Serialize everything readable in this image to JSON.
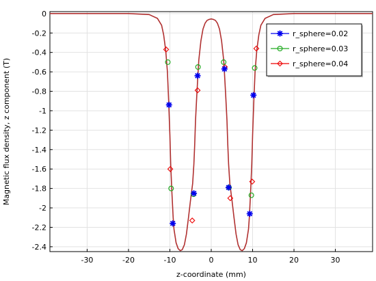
{
  "chart_data": {
    "type": "line",
    "title": "",
    "xlabel": "z-coordinate (mm)",
    "ylabel": "Magnetic flux density, z component (T)",
    "xlim": [
      -39,
      39
    ],
    "ylim": [
      -2.45,
      0.02
    ],
    "x_ticks": [
      -30,
      -20,
      -10,
      0,
      10,
      20,
      30
    ],
    "x_tick_labels": [
      "-30",
      "-20",
      "-10",
      "0",
      "10",
      "20",
      "30"
    ],
    "y_ticks": [
      0,
      -0.2,
      -0.4,
      -0.6,
      -0.8,
      -1,
      -1.2,
      -1.4,
      -1.6,
      -1.8,
      -2,
      -2.2,
      -2.4
    ],
    "y_tick_labels": [
      "0",
      "-0.2",
      "-0.4",
      "-0.6",
      "-0.8",
      "-1",
      "-1.2",
      "-1.4",
      "-1.6",
      "-1.8",
      "-2",
      "-2.2",
      "-2.4"
    ],
    "grid": true,
    "legend_position": "top-right",
    "curve": {
      "color": "#b03030",
      "x": [
        -39,
        -20,
        -15,
        -13,
        -12,
        -11.5,
        -11,
        -10.6,
        -10.3,
        -10,
        -9.8,
        -9.5,
        -9.2,
        -9,
        -8.5,
        -8,
        -7.5,
        -7,
        -6.5,
        -6,
        -5.5,
        -5,
        -4.5,
        -4.2,
        -4,
        -3.8,
        -3.5,
        -3.2,
        -3,
        -2.5,
        -2,
        -1.5,
        -1,
        -0.5,
        0,
        0.5,
        1,
        1.5,
        2,
        2.5,
        3,
        3.2,
        3.5,
        3.8,
        4,
        4.2,
        4.5,
        5,
        5.5,
        6,
        6.5,
        7,
        7.5,
        8,
        8.5,
        9,
        9.2,
        9.5,
        9.8,
        10,
        10.3,
        10.6,
        11,
        11.5,
        12,
        13,
        15,
        20,
        39
      ],
      "y": [
        0,
        0,
        -0.01,
        -0.05,
        -0.12,
        -0.22,
        -0.38,
        -0.6,
        -0.9,
        -1.25,
        -1.55,
        -1.85,
        -2.1,
        -2.22,
        -2.36,
        -2.42,
        -2.44,
        -2.43,
        -2.38,
        -2.27,
        -2.1,
        -1.92,
        -1.75,
        -1.55,
        -1.35,
        -1.1,
        -0.85,
        -0.62,
        -0.48,
        -0.28,
        -0.16,
        -0.1,
        -0.07,
        -0.06,
        -0.055,
        -0.06,
        -0.07,
        -0.1,
        -0.16,
        -0.28,
        -0.48,
        -0.62,
        -0.85,
        -1.1,
        -1.35,
        -1.55,
        -1.75,
        -1.92,
        -2.1,
        -2.27,
        -2.38,
        -2.43,
        -2.44,
        -2.42,
        -2.36,
        -2.22,
        -2.1,
        -1.85,
        -1.55,
        -1.25,
        -0.9,
        -0.6,
        -0.38,
        -0.22,
        -0.12,
        -0.05,
        -0.01,
        0,
        0
      ]
    },
    "series": [
      {
        "name": "r_sphere=0.02",
        "color": "#0000ee",
        "marker": "asterisk",
        "x": [
          -10.2,
          -9.3,
          -4.2,
          -3.3,
          3.2,
          4.2,
          9.3,
          10.2
        ],
        "y": [
          -0.94,
          -2.16,
          -1.85,
          -0.64,
          -0.57,
          -1.79,
          -2.06,
          -0.84
        ]
      },
      {
        "name": "r_sphere=0.03",
        "color": "#22aa22",
        "marker": "circle",
        "x": [
          -10.5,
          -9.7,
          -4.3,
          -3.2,
          3.0,
          4.3,
          9.7,
          10.5
        ],
        "y": [
          -0.5,
          -1.8,
          -1.86,
          -0.55,
          -0.5,
          -1.79,
          -1.87,
          -0.56
        ]
      },
      {
        "name": "r_sphere=0.04",
        "color": "#ee0000",
        "marker": "diamond",
        "x": [
          -10.9,
          -9.9,
          -4.6,
          -3.3,
          3.3,
          4.6,
          9.9,
          10.9
        ],
        "y": [
          -0.37,
          -1.6,
          -2.13,
          -0.79,
          -0.55,
          -1.9,
          -1.73,
          -0.36
        ]
      }
    ]
  }
}
